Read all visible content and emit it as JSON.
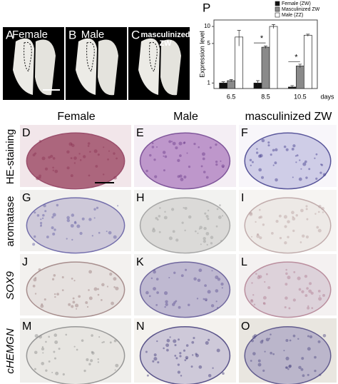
{
  "photos": [
    {
      "letter": "A",
      "label": [
        "Female"
      ]
    },
    {
      "letter": "B",
      "label": [
        "Male"
      ]
    },
    {
      "letter": "C",
      "label": [
        "masculinized",
        "ZW"
      ]
    }
  ],
  "columns": [
    "Female",
    "Male",
    "masculinized ZW"
  ],
  "rows": [
    {
      "label": "HE-staining",
      "panels": [
        "D",
        "E",
        "F"
      ]
    },
    {
      "label": "aromatase",
      "panels": [
        "G",
        "H",
        "I"
      ]
    },
    {
      "label": "SOX9",
      "panels": [
        "J",
        "K",
        "L"
      ]
    },
    {
      "label": "cHEMGN",
      "panels": [
        "M",
        "N",
        "O"
      ]
    }
  ],
  "chart_data": {
    "type": "bar",
    "panel_label": "P",
    "y_label": "Expression level",
    "x_label": "days",
    "categories": [
      "6.5",
      "8.5",
      "10.5"
    ],
    "yscale": "log",
    "ylim": [
      0.8,
      13
    ],
    "yticks": [
      1,
      5,
      10
    ],
    "series": [
      {
        "name": "Female (ZW)",
        "color": "#111111",
        "values": [
          1.0,
          1.0,
          0.85
        ],
        "errors": [
          0.05,
          0.1,
          0.05
        ]
      },
      {
        "name": "Masculinized ZW",
        "color": "#8a8a8a",
        "values": [
          1.1,
          4.3,
          2.0
        ],
        "errors": [
          0.05,
          0.2,
          0.15
        ]
      },
      {
        "name": "Male (ZZ)",
        "color": "#ffffff",
        "values": [
          6.5,
          10,
          7
        ],
        "errors": [
          2,
          0.8,
          0.3
        ]
      }
    ],
    "annotations": [
      "*",
      "*"
    ]
  }
}
